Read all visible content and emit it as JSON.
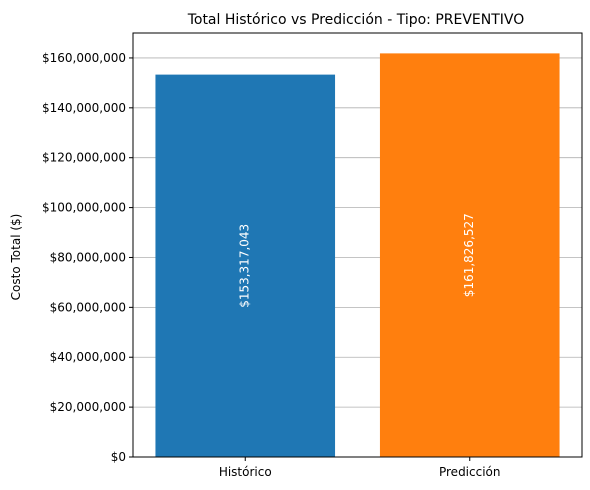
{
  "chart_data": {
    "type": "bar",
    "title": "Total Histórico vs Predicción - Tipo: PREVENTIVO",
    "xlabel": "",
    "ylabel": "Costo Total ($)",
    "categories": [
      "Histórico",
      "Predicción"
    ],
    "values": [
      153317043,
      161826527
    ],
    "data_labels": [
      "$153,317,043",
      "$161,826,527"
    ],
    "colors": [
      "#1f77b4",
      "#ff7f0e"
    ],
    "ylim": [
      0,
      170000000
    ],
    "yticks": [
      0,
      20000000,
      40000000,
      60000000,
      80000000,
      100000000,
      120000000,
      140000000,
      160000000
    ],
    "ytick_labels": [
      "$0",
      "$20,000,000",
      "$40,000,000",
      "$60,000,000",
      "$80,000,000",
      "$100,000,000",
      "$120,000,000",
      "$140,000,000",
      "$160,000,000"
    ],
    "grid": "y",
    "legend": "none",
    "label_color": "#ffffff"
  }
}
